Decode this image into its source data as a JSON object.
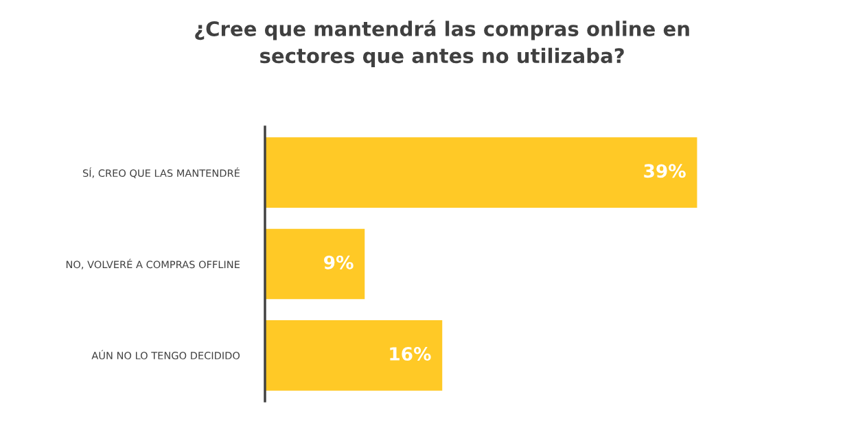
{
  "chart_data": {
    "type": "bar",
    "orientation": "horizontal",
    "title": "¿Cree que mantendrá las compras online en\nsectores que antes no utilizaba?",
    "categories": [
      "SÍ, CREO QUE LAS MANTENDRÉ",
      "NO, VOLVERÉ A COMPRAS OFFLINE",
      "AÚN NO LO TENGO DECIDIDO"
    ],
    "values": [
      39,
      9,
      16
    ],
    "value_labels": [
      "39%",
      "9%",
      "16%"
    ],
    "color": "#ffc926",
    "grid": false,
    "legend": false
  }
}
